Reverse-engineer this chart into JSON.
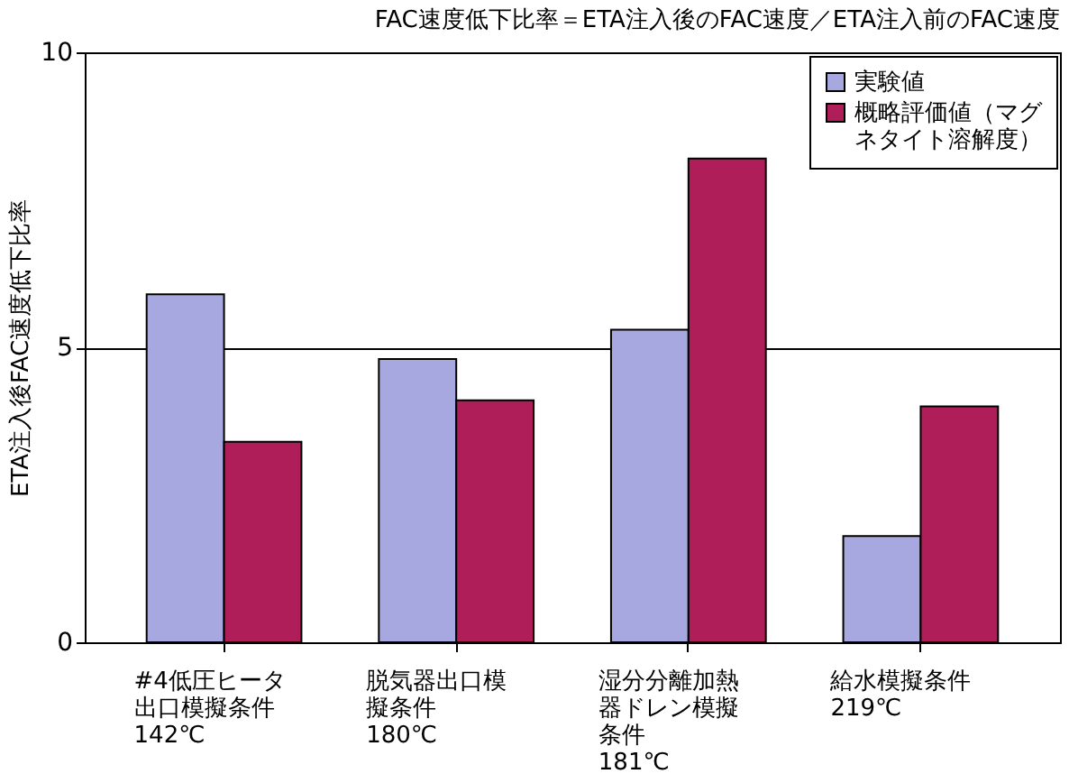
{
  "chart_data": {
    "type": "bar",
    "title": "FAC速度低下比率＝ETA注入後のFAC速度／ETA注入前のFAC速度",
    "ylabel": "ETA注入後FAC速度低下比率",
    "categories": [
      "#4低圧ヒータ出口模擬条件\n142℃",
      "脱気器出口模擬条件\n180℃",
      "湿分分離加熱器ドレン模擬条件\n181℃",
      "給水模擬条件\n219℃"
    ],
    "series": [
      {
        "name": "実験値",
        "color": "#a8a8e0",
        "values": [
          5.9,
          4.8,
          5.3,
          1.8
        ]
      },
      {
        "name": "概略評価値（マグネタイト溶解度）",
        "color": "#b01e5a",
        "values": [
          3.4,
          4.1,
          8.2,
          4.0
        ]
      }
    ],
    "ylim": [
      0,
      10
    ],
    "yticks": [
      0,
      5,
      10
    ],
    "grid": "y",
    "legend": "top right"
  }
}
